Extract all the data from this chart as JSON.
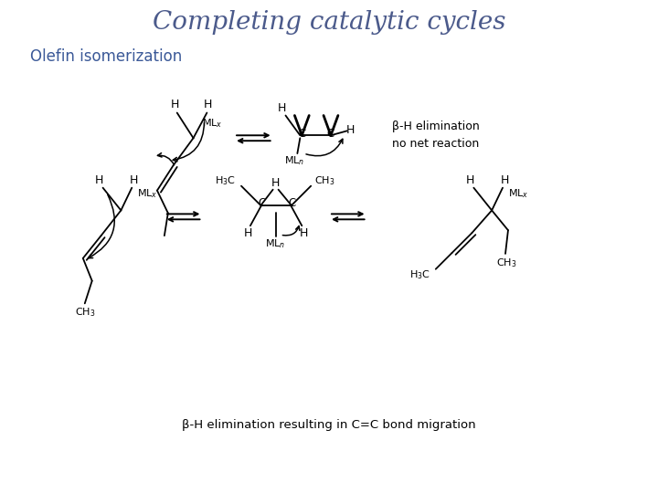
{
  "title": "Completing catalytic cycles",
  "title_color": "#4B5A8B",
  "title_fontsize": 20,
  "title_style": "italic",
  "title_family": "serif",
  "subtitle1": "Olefin isomerization",
  "subtitle1_color": "#3B5998",
  "subtitle1_fontsize": 12,
  "label_beta_elim1": "β-H elimination\nno net reaction",
  "label_beta_elim2": "β-H elimination resulting in C=C bond migration",
  "text_color": "#000000",
  "bg_color": "#ffffff"
}
